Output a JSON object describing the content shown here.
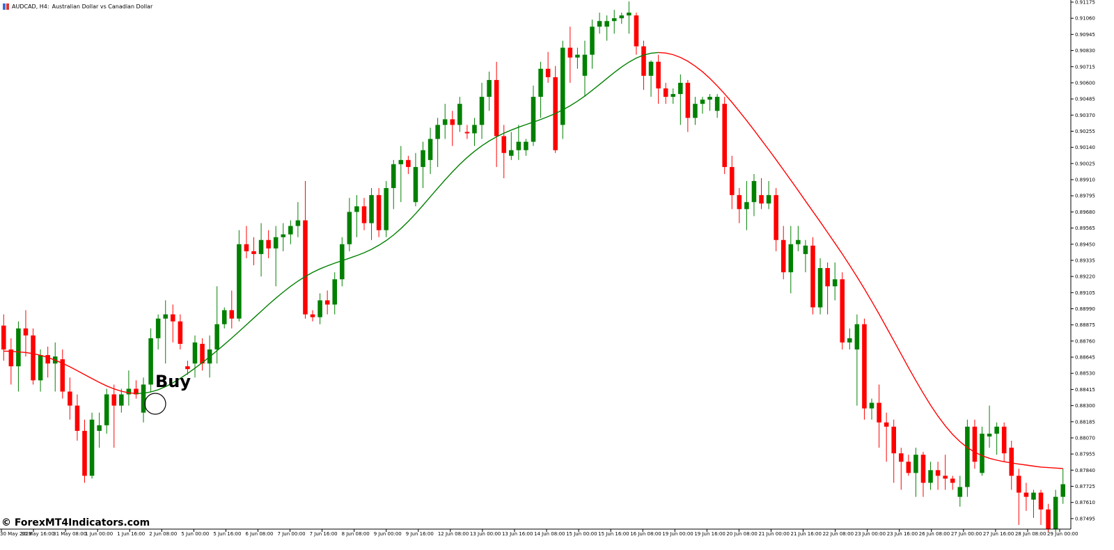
{
  "title": {
    "symbol_timeframe": "AUDCAD, H4:",
    "description": "Australian Dollar vs Canadian Dollar",
    "icon": "chart-window-icon"
  },
  "watermark": "© ForexMT4Indicators.com",
  "annotation": {
    "label": "Buy",
    "marker": "circle-marker-icon"
  },
  "colors": {
    "bull": "#008000",
    "bear": "#ff0000",
    "ma_up": "#008000",
    "ma_down": "#ff0000"
  },
  "chart_data": {
    "type": "candlestick",
    "symbol": "AUDCAD",
    "timeframe": "H4",
    "y_ticks": [
      "0.91175",
      "0.91060",
      "0.90945",
      "0.90830",
      "0.90715",
      "0.90600",
      "0.90485",
      "0.90370",
      "0.90255",
      "0.90140",
      "0.90025",
      "0.89910",
      "0.89795",
      "0.89680",
      "0.89565",
      "0.89450",
      "0.89335",
      "0.89220",
      "0.89105",
      "0.88990",
      "0.88875",
      "0.88760",
      "0.88645",
      "0.88530",
      "0.88415",
      "0.88300",
      "0.88185",
      "0.88070",
      "0.87955",
      "0.87840",
      "0.87725",
      "0.87610",
      "0.87495"
    ],
    "ylim": [
      0.8742,
      0.9119
    ],
    "x_ticks": [
      "30 May 2023",
      "30 May 16:00",
      "31 May 08:00",
      "1 Jun 00:00",
      "1 Jun 16:00",
      "2 Jun 08:00",
      "5 Jun 00:00",
      "5 Jun 16:00",
      "6 Jun 08:00",
      "7 Jun 00:00",
      "7 Jun 16:00",
      "8 Jun 08:00",
      "9 Jun 00:00",
      "9 Jun 16:00",
      "12 Jun 08:00",
      "13 Jun 00:00",
      "13 Jun 16:00",
      "14 Jun 08:00",
      "15 Jun 00:00",
      "15 Jun 16:00",
      "16 Jun 08:00",
      "19 Jun 00:00",
      "19 Jun 16:00",
      "20 Jun 08:00",
      "21 Jun 00:00",
      "21 Jun 16:00",
      "22 Jun 08:00",
      "23 Jun 00:00",
      "23 Jun 16:00",
      "26 Jun 08:00",
      "27 Jun 00:00",
      "27 Jun 16:00",
      "28 Jun 08:00",
      "29 Jun 00:00"
    ],
    "candles": [
      [
        0.8887,
        0.8895,
        0.8862,
        0.887
      ],
      [
        0.887,
        0.8878,
        0.8845,
        0.8858
      ],
      [
        0.8858,
        0.889,
        0.884,
        0.8885
      ],
      [
        0.8885,
        0.8898,
        0.8865,
        0.888
      ],
      [
        0.888,
        0.8885,
        0.8845,
        0.8848
      ],
      [
        0.8848,
        0.887,
        0.884,
        0.8866
      ],
      [
        0.8866,
        0.8872,
        0.885,
        0.886
      ],
      [
        0.886,
        0.8875,
        0.884,
        0.8865
      ],
      [
        0.8863,
        0.887,
        0.8835,
        0.884
      ],
      [
        0.884,
        0.885,
        0.882,
        0.883
      ],
      [
        0.883,
        0.8838,
        0.8805,
        0.8812
      ],
      [
        0.8812,
        0.882,
        0.8775,
        0.878
      ],
      [
        0.878,
        0.8825,
        0.8778,
        0.882
      ],
      [
        0.8812,
        0.8825,
        0.88,
        0.8816
      ],
      [
        0.8816,
        0.8842,
        0.881,
        0.8838
      ],
      [
        0.8838,
        0.8845,
        0.88,
        0.883
      ],
      [
        0.883,
        0.8842,
        0.8825,
        0.8838
      ],
      [
        0.8838,
        0.8855,
        0.883,
        0.8842
      ],
      [
        0.8842,
        0.8848,
        0.8835,
        0.8838
      ],
      [
        0.8825,
        0.885,
        0.8818,
        0.8845
      ],
      [
        0.8845,
        0.8885,
        0.884,
        0.8878
      ],
      [
        0.8878,
        0.8895,
        0.887,
        0.8892
      ],
      [
        0.8892,
        0.8905,
        0.886,
        0.8895
      ],
      [
        0.8895,
        0.8902,
        0.8875,
        0.889
      ],
      [
        0.889,
        0.8895,
        0.887,
        0.8874
      ],
      [
        0.8858,
        0.8862,
        0.8852,
        0.8856
      ],
      [
        0.886,
        0.888,
        0.885,
        0.8875
      ],
      [
        0.8874,
        0.8878,
        0.8855,
        0.886
      ],
      [
        0.886,
        0.888,
        0.885,
        0.887
      ],
      [
        0.887,
        0.8915,
        0.886,
        0.8888
      ],
      [
        0.8888,
        0.89,
        0.8885,
        0.8898
      ],
      [
        0.8898,
        0.8912,
        0.8885,
        0.8892
      ],
      [
        0.8892,
        0.8955,
        0.889,
        0.8945
      ],
      [
        0.8945,
        0.8958,
        0.8935,
        0.894
      ],
      [
        0.894,
        0.895,
        0.893,
        0.8938
      ],
      [
        0.8938,
        0.896,
        0.8922,
        0.8948
      ],
      [
        0.8948,
        0.8955,
        0.8935,
        0.8942
      ],
      [
        0.8942,
        0.8958,
        0.8915,
        0.895
      ],
      [
        0.895,
        0.896,
        0.894,
        0.8952
      ],
      [
        0.8952,
        0.8962,
        0.8945,
        0.8958
      ],
      [
        0.8958,
        0.8975,
        0.895,
        0.8962
      ],
      [
        0.8962,
        0.899,
        0.8892,
        0.8895
      ],
      [
        0.8895,
        0.8898,
        0.889,
        0.8893
      ],
      [
        0.8893,
        0.891,
        0.8888,
        0.8905
      ],
      [
        0.8905,
        0.8912,
        0.8895,
        0.8902
      ],
      [
        0.8902,
        0.8925,
        0.8895,
        0.892
      ],
      [
        0.892,
        0.895,
        0.8915,
        0.8945
      ],
      [
        0.8945,
        0.8978,
        0.894,
        0.8968
      ],
      [
        0.8968,
        0.898,
        0.895,
        0.8972
      ],
      [
        0.8972,
        0.8978,
        0.8955,
        0.896
      ],
      [
        0.896,
        0.8985,
        0.8948,
        0.898
      ],
      [
        0.898,
        0.8985,
        0.895,
        0.8955
      ],
      [
        0.8955,
        0.899,
        0.895,
        0.8985
      ],
      [
        0.8985,
        0.9005,
        0.897,
        0.9002
      ],
      [
        0.9002,
        0.9015,
        0.8975,
        0.9005
      ],
      [
        0.9005,
        0.9008,
        0.8995,
        0.9
      ],
      [
        0.8975,
        0.901,
        0.8972,
        0.9
      ],
      [
        0.9,
        0.9018,
        0.8985,
        0.9012
      ],
      [
        0.9005,
        0.9028,
        0.8995,
        0.902
      ],
      [
        0.902,
        0.9035,
        0.9,
        0.903
      ],
      [
        0.903,
        0.9045,
        0.902,
        0.9034
      ],
      [
        0.9034,
        0.904,
        0.9015,
        0.903
      ],
      [
        0.903,
        0.905,
        0.9025,
        0.9045
      ],
      [
        0.9025,
        0.903,
        0.902,
        0.9024
      ],
      [
        0.9024,
        0.9035,
        0.9015,
        0.903
      ],
      [
        0.903,
        0.906,
        0.902,
        0.905
      ],
      [
        0.905,
        0.9068,
        0.904,
        0.9062
      ],
      [
        0.9062,
        0.9075,
        0.9,
        0.9022
      ],
      [
        0.9022,
        0.903,
        0.8992,
        0.901
      ],
      [
        0.9008,
        0.9025,
        0.9005,
        0.9012
      ],
      [
        0.9012,
        0.903,
        0.9005,
        0.9018
      ],
      [
        0.9012,
        0.902,
        0.9008,
        0.9018
      ],
      [
        0.9018,
        0.9058,
        0.9015,
        0.905
      ],
      [
        0.905,
        0.9075,
        0.9035,
        0.907
      ],
      [
        0.907,
        0.9082,
        0.906,
        0.9064
      ],
      [
        0.9064,
        0.9072,
        0.901,
        0.9012
      ],
      [
        0.903,
        0.909,
        0.902,
        0.9085
      ],
      [
        0.9085,
        0.91,
        0.906,
        0.9078
      ],
      [
        0.9078,
        0.9085,
        0.907,
        0.908
      ],
      [
        0.9065,
        0.909,
        0.905,
        0.908
      ],
      [
        0.908,
        0.9105,
        0.907,
        0.91
      ],
      [
        0.91,
        0.911,
        0.9095,
        0.9104
      ],
      [
        0.91,
        0.9108,
        0.909,
        0.9104
      ],
      [
        0.9104,
        0.9112,
        0.9095,
        0.9106
      ],
      [
        0.9106,
        0.911,
        0.9102,
        0.9108
      ],
      [
        0.9108,
        0.9118,
        0.9095,
        0.911
      ],
      [
        0.9108,
        0.911,
        0.908,
        0.9086
      ],
      [
        0.9086,
        0.909,
        0.9055,
        0.9065
      ],
      [
        0.9065,
        0.9076,
        0.905,
        0.9075
      ],
      [
        0.9075,
        0.908,
        0.9045,
        0.9056
      ],
      [
        0.9056,
        0.906,
        0.9045,
        0.905
      ],
      [
        0.905,
        0.9056,
        0.9045,
        0.9052
      ],
      [
        0.9052,
        0.9066,
        0.903,
        0.906
      ],
      [
        0.906,
        0.9062,
        0.9025,
        0.9035
      ],
      [
        0.9035,
        0.905,
        0.903,
        0.9045
      ],
      [
        0.9045,
        0.905,
        0.9038,
        0.9048
      ],
      [
        0.9048,
        0.9052,
        0.904,
        0.905
      ],
      [
        0.904,
        0.9052,
        0.9035,
        0.905
      ],
      [
        0.9045,
        0.905,
        0.8995,
        0.9
      ],
      [
        0.9,
        0.9008,
        0.897,
        0.898
      ],
      [
        0.898,
        0.8985,
        0.896,
        0.897
      ],
      [
        0.897,
        0.899,
        0.8955,
        0.8975
      ],
      [
        0.8975,
        0.8995,
        0.8965,
        0.899
      ],
      [
        0.898,
        0.8992,
        0.897,
        0.8974
      ],
      [
        0.8974,
        0.899,
        0.897,
        0.898
      ],
      [
        0.898,
        0.8985,
        0.894,
        0.8948
      ],
      [
        0.8948,
        0.8958,
        0.892,
        0.8925
      ],
      [
        0.8925,
        0.8958,
        0.891,
        0.8945
      ],
      [
        0.8945,
        0.8958,
        0.894,
        0.8948
      ],
      [
        0.8938,
        0.8948,
        0.8925,
        0.8944
      ],
      [
        0.8944,
        0.895,
        0.8895,
        0.89
      ],
      [
        0.89,
        0.8935,
        0.8895,
        0.8928
      ],
      [
        0.8928,
        0.8932,
        0.8895,
        0.8915
      ],
      [
        0.8915,
        0.8932,
        0.8905,
        0.892
      ],
      [
        0.892,
        0.8925,
        0.887,
        0.8875
      ],
      [
        0.8875,
        0.8885,
        0.887,
        0.8878
      ],
      [
        0.887,
        0.8895,
        0.883,
        0.8888
      ],
      [
        0.8888,
        0.8892,
        0.882,
        0.8828
      ],
      [
        0.8828,
        0.8835,
        0.882,
        0.8832
      ],
      [
        0.8832,
        0.8845,
        0.88,
        0.8818
      ],
      [
        0.8818,
        0.8825,
        0.879,
        0.8815
      ],
      [
        0.8815,
        0.882,
        0.8775,
        0.8796
      ],
      [
        0.8796,
        0.88,
        0.877,
        0.879
      ],
      [
        0.879,
        0.8795,
        0.878,
        0.8782
      ],
      [
        0.8782,
        0.88,
        0.8765,
        0.8795
      ],
      [
        0.8795,
        0.8797,
        0.8765,
        0.8775
      ],
      [
        0.8775,
        0.879,
        0.877,
        0.8784
      ],
      [
        0.8784,
        0.879,
        0.877,
        0.878
      ],
      [
        0.878,
        0.8795,
        0.877,
        0.8778
      ],
      [
        0.8778,
        0.878,
        0.877,
        0.8775
      ],
      [
        0.8765,
        0.878,
        0.8758,
        0.8772
      ],
      [
        0.8772,
        0.882,
        0.8765,
        0.8815
      ],
      [
        0.8815,
        0.882,
        0.8785,
        0.879
      ],
      [
        0.8782,
        0.8815,
        0.878,
        0.881
      ],
      [
        0.8808,
        0.883,
        0.88,
        0.881
      ],
      [
        0.881,
        0.8818,
        0.8795,
        0.8815
      ],
      [
        0.8815,
        0.8818,
        0.879,
        0.8796
      ],
      [
        0.88,
        0.8805,
        0.877,
        0.878
      ],
      [
        0.878,
        0.8785,
        0.8745,
        0.8768
      ],
      [
        0.8768,
        0.8775,
        0.8755,
        0.8765
      ],
      [
        0.8763,
        0.877,
        0.875,
        0.8768
      ],
      [
        0.8768,
        0.877,
        0.8745,
        0.8756
      ],
      [
        0.8756,
        0.876,
        0.874,
        0.8742
      ],
      [
        0.8742,
        0.877,
        0.874,
        0.8765
      ],
      [
        0.8765,
        0.8785,
        0.876,
        0.8774
      ]
    ]
  }
}
